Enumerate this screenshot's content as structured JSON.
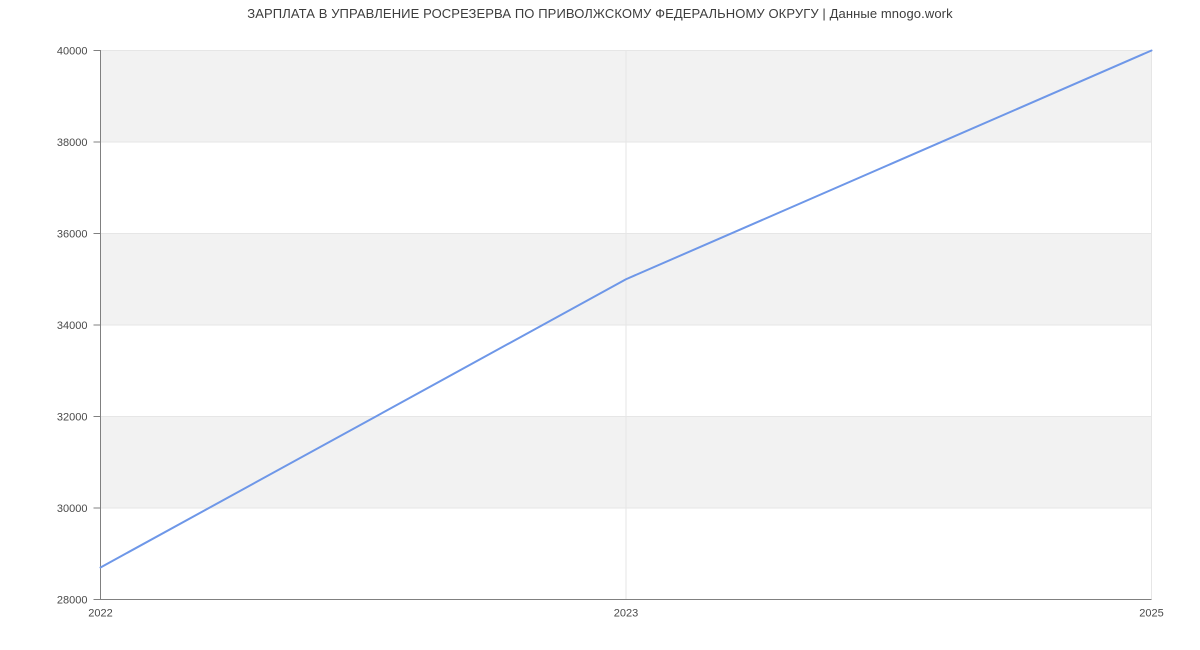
{
  "chart_data": {
    "type": "line",
    "title": "ЗАРПЛАТА В УПРАВЛЕНИЕ РОСРЕЗЕРВА ПО ПРИВОЛЖСКОМУ ФЕДЕРАЛЬНОМУ ОКРУГУ | Данные mnogo.work",
    "categories": [
      "2022",
      "2023",
      "2025"
    ],
    "values": [
      28700,
      35000,
      40000
    ],
    "xlabel": "",
    "ylabel": "",
    "ylim": [
      28000,
      40000
    ],
    "ytick_step": 2000,
    "ytick_labels": [
      "28000",
      "30000",
      "32000",
      "34000",
      "36000",
      "38000",
      "40000"
    ],
    "grid": "horizontal gridlines every 2000 with alternating shaded bands; vertical gridline at each category",
    "legend": false,
    "colors": {
      "line": "#6e97e8",
      "band": "#f2f2f2",
      "gridline": "#e6e6e6",
      "axis": "#808080",
      "tick_text": "#4a4a4a",
      "title_text": "#3d3d3d",
      "background": "#ffffff"
    }
  }
}
